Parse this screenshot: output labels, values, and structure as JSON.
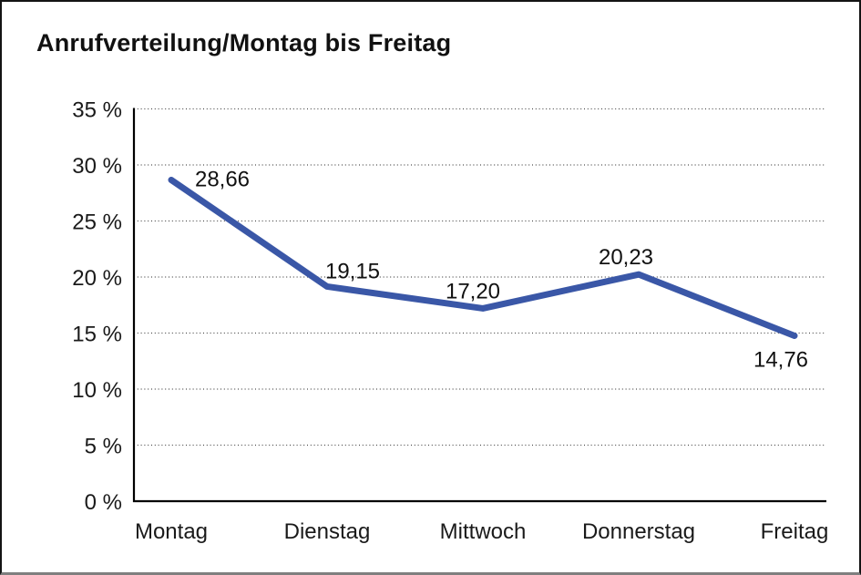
{
  "chart_data": {
    "type": "line",
    "title": "Anrufverteilung/Montag bis Freitag",
    "categories": [
      "Montag",
      "Dienstag",
      "Mittwoch",
      "Donnerstag",
      "Freitag"
    ],
    "values": [
      28.66,
      19.15,
      17.2,
      20.23,
      14.76
    ],
    "point_labels": [
      "28,66",
      "19,15",
      "17,20",
      "20,23",
      "14,76"
    ],
    "yticks": [
      0,
      5,
      10,
      15,
      20,
      25,
      30,
      35
    ],
    "ytick_labels": [
      "0 %",
      "5 %",
      "10 %",
      "15 %",
      "20 %",
      "25 %",
      "30 %",
      "35 %"
    ],
    "ylim": [
      0,
      35
    ],
    "xlabel": "",
    "ylabel": "",
    "legend": "none",
    "grid": "horizontal-dotted",
    "line_color": "#3A57A7",
    "axis_color": "#000000",
    "grid_color": "#4d4d4d",
    "frame_bottom_color": "#7f7f7f"
  }
}
